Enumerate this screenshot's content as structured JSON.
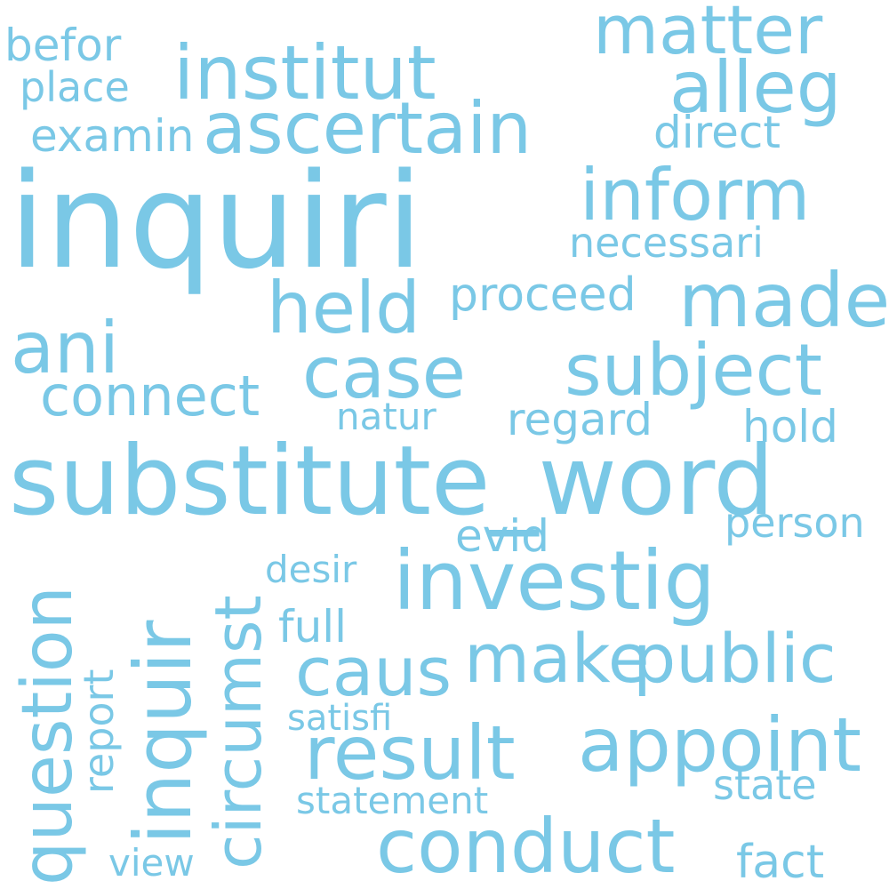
{
  "colors": {
    "background": "#ffffff",
    "word": "#7ac8e6"
  },
  "words": {
    "inquiri": "inquiri",
    "substitute_word": "substitute_word",
    "investig": "investig",
    "institut": "institut",
    "ascertain": "ascertain",
    "matter": "matter",
    "alleg": "alleg",
    "inform": "inform",
    "made": "made",
    "held": "held",
    "ani": "ani",
    "case": "case",
    "subject": "subject",
    "connect": "connect",
    "make": "make",
    "public": "public",
    "result": "result",
    "appoint": "appoint",
    "conduct": "conduct",
    "caus": "caus",
    "question": "question",
    "inquir": "inquir",
    "circumst": "circumst",
    "befor": "befor",
    "place": "place",
    "examin": "examin",
    "direct": "direct",
    "necessari": "necessari",
    "proceed": "proceed",
    "natur": "natur",
    "regard": "regard",
    "hold": "hold",
    "person": "person",
    "evid": "evid",
    "desir": "desir",
    "full": "full",
    "report": "report",
    "satisfi": "satisfi",
    "state": "state",
    "statement": "statement",
    "view": "view",
    "fact": "fact"
  }
}
